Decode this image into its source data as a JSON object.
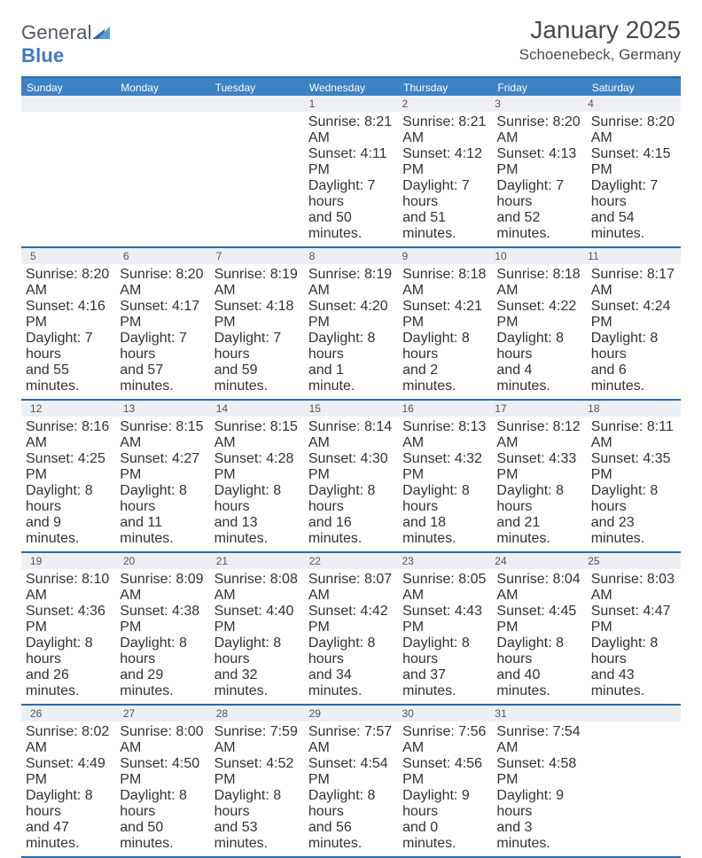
{
  "logo": {
    "text_general": "General",
    "text_blue": "Blue",
    "triangle_color": "#2f6aa8",
    "triangle_color_light": "#5a9bd4"
  },
  "header": {
    "month_title": "January 2025",
    "location": "Schoenebeck, Germany"
  },
  "colors": {
    "header_bar": "#3d82c4",
    "header_bar_border": "#2f6aa8",
    "daynum_bg": "#eceff3",
    "text": "#333333",
    "title_text": "#4a4a4a"
  },
  "day_names": [
    "Sunday",
    "Monday",
    "Tuesday",
    "Wednesday",
    "Thursday",
    "Friday",
    "Saturday"
  ],
  "weeks": [
    [
      null,
      null,
      null,
      {
        "n": "1",
        "sunrise": "Sunrise: 8:21 AM",
        "sunset": "Sunset: 4:11 PM",
        "day1": "Daylight: 7 hours",
        "day2": "and 50 minutes."
      },
      {
        "n": "2",
        "sunrise": "Sunrise: 8:21 AM",
        "sunset": "Sunset: 4:12 PM",
        "day1": "Daylight: 7 hours",
        "day2": "and 51 minutes."
      },
      {
        "n": "3",
        "sunrise": "Sunrise: 8:20 AM",
        "sunset": "Sunset: 4:13 PM",
        "day1": "Daylight: 7 hours",
        "day2": "and 52 minutes."
      },
      {
        "n": "4",
        "sunrise": "Sunrise: 8:20 AM",
        "sunset": "Sunset: 4:15 PM",
        "day1": "Daylight: 7 hours",
        "day2": "and 54 minutes."
      }
    ],
    [
      {
        "n": "5",
        "sunrise": "Sunrise: 8:20 AM",
        "sunset": "Sunset: 4:16 PM",
        "day1": "Daylight: 7 hours",
        "day2": "and 55 minutes."
      },
      {
        "n": "6",
        "sunrise": "Sunrise: 8:20 AM",
        "sunset": "Sunset: 4:17 PM",
        "day1": "Daylight: 7 hours",
        "day2": "and 57 minutes."
      },
      {
        "n": "7",
        "sunrise": "Sunrise: 8:19 AM",
        "sunset": "Sunset: 4:18 PM",
        "day1": "Daylight: 7 hours",
        "day2": "and 59 minutes."
      },
      {
        "n": "8",
        "sunrise": "Sunrise: 8:19 AM",
        "sunset": "Sunset: 4:20 PM",
        "day1": "Daylight: 8 hours",
        "day2": "and 1 minute."
      },
      {
        "n": "9",
        "sunrise": "Sunrise: 8:18 AM",
        "sunset": "Sunset: 4:21 PM",
        "day1": "Daylight: 8 hours",
        "day2": "and 2 minutes."
      },
      {
        "n": "10",
        "sunrise": "Sunrise: 8:18 AM",
        "sunset": "Sunset: 4:22 PM",
        "day1": "Daylight: 8 hours",
        "day2": "and 4 minutes."
      },
      {
        "n": "11",
        "sunrise": "Sunrise: 8:17 AM",
        "sunset": "Sunset: 4:24 PM",
        "day1": "Daylight: 8 hours",
        "day2": "and 6 minutes."
      }
    ],
    [
      {
        "n": "12",
        "sunrise": "Sunrise: 8:16 AM",
        "sunset": "Sunset: 4:25 PM",
        "day1": "Daylight: 8 hours",
        "day2": "and 9 minutes."
      },
      {
        "n": "13",
        "sunrise": "Sunrise: 8:15 AM",
        "sunset": "Sunset: 4:27 PM",
        "day1": "Daylight: 8 hours",
        "day2": "and 11 minutes."
      },
      {
        "n": "14",
        "sunrise": "Sunrise: 8:15 AM",
        "sunset": "Sunset: 4:28 PM",
        "day1": "Daylight: 8 hours",
        "day2": "and 13 minutes."
      },
      {
        "n": "15",
        "sunrise": "Sunrise: 8:14 AM",
        "sunset": "Sunset: 4:30 PM",
        "day1": "Daylight: 8 hours",
        "day2": "and 16 minutes."
      },
      {
        "n": "16",
        "sunrise": "Sunrise: 8:13 AM",
        "sunset": "Sunset: 4:32 PM",
        "day1": "Daylight: 8 hours",
        "day2": "and 18 minutes."
      },
      {
        "n": "17",
        "sunrise": "Sunrise: 8:12 AM",
        "sunset": "Sunset: 4:33 PM",
        "day1": "Daylight: 8 hours",
        "day2": "and 21 minutes."
      },
      {
        "n": "18",
        "sunrise": "Sunrise: 8:11 AM",
        "sunset": "Sunset: 4:35 PM",
        "day1": "Daylight: 8 hours",
        "day2": "and 23 minutes."
      }
    ],
    [
      {
        "n": "19",
        "sunrise": "Sunrise: 8:10 AM",
        "sunset": "Sunset: 4:36 PM",
        "day1": "Daylight: 8 hours",
        "day2": "and 26 minutes."
      },
      {
        "n": "20",
        "sunrise": "Sunrise: 8:09 AM",
        "sunset": "Sunset: 4:38 PM",
        "day1": "Daylight: 8 hours",
        "day2": "and 29 minutes."
      },
      {
        "n": "21",
        "sunrise": "Sunrise: 8:08 AM",
        "sunset": "Sunset: 4:40 PM",
        "day1": "Daylight: 8 hours",
        "day2": "and 32 minutes."
      },
      {
        "n": "22",
        "sunrise": "Sunrise: 8:07 AM",
        "sunset": "Sunset: 4:42 PM",
        "day1": "Daylight: 8 hours",
        "day2": "and 34 minutes."
      },
      {
        "n": "23",
        "sunrise": "Sunrise: 8:05 AM",
        "sunset": "Sunset: 4:43 PM",
        "day1": "Daylight: 8 hours",
        "day2": "and 37 minutes."
      },
      {
        "n": "24",
        "sunrise": "Sunrise: 8:04 AM",
        "sunset": "Sunset: 4:45 PM",
        "day1": "Daylight: 8 hours",
        "day2": "and 40 minutes."
      },
      {
        "n": "25",
        "sunrise": "Sunrise: 8:03 AM",
        "sunset": "Sunset: 4:47 PM",
        "day1": "Daylight: 8 hours",
        "day2": "and 43 minutes."
      }
    ],
    [
      {
        "n": "26",
        "sunrise": "Sunrise: 8:02 AM",
        "sunset": "Sunset: 4:49 PM",
        "day1": "Daylight: 8 hours",
        "day2": "and 47 minutes."
      },
      {
        "n": "27",
        "sunrise": "Sunrise: 8:00 AM",
        "sunset": "Sunset: 4:50 PM",
        "day1": "Daylight: 8 hours",
        "day2": "and 50 minutes."
      },
      {
        "n": "28",
        "sunrise": "Sunrise: 7:59 AM",
        "sunset": "Sunset: 4:52 PM",
        "day1": "Daylight: 8 hours",
        "day2": "and 53 minutes."
      },
      {
        "n": "29",
        "sunrise": "Sunrise: 7:57 AM",
        "sunset": "Sunset: 4:54 PM",
        "day1": "Daylight: 8 hours",
        "day2": "and 56 minutes."
      },
      {
        "n": "30",
        "sunrise": "Sunrise: 7:56 AM",
        "sunset": "Sunset: 4:56 PM",
        "day1": "Daylight: 9 hours",
        "day2": "and 0 minutes."
      },
      {
        "n": "31",
        "sunrise": "Sunrise: 7:54 AM",
        "sunset": "Sunset: 4:58 PM",
        "day1": "Daylight: 9 hours",
        "day2": "and 3 minutes."
      },
      null
    ]
  ]
}
